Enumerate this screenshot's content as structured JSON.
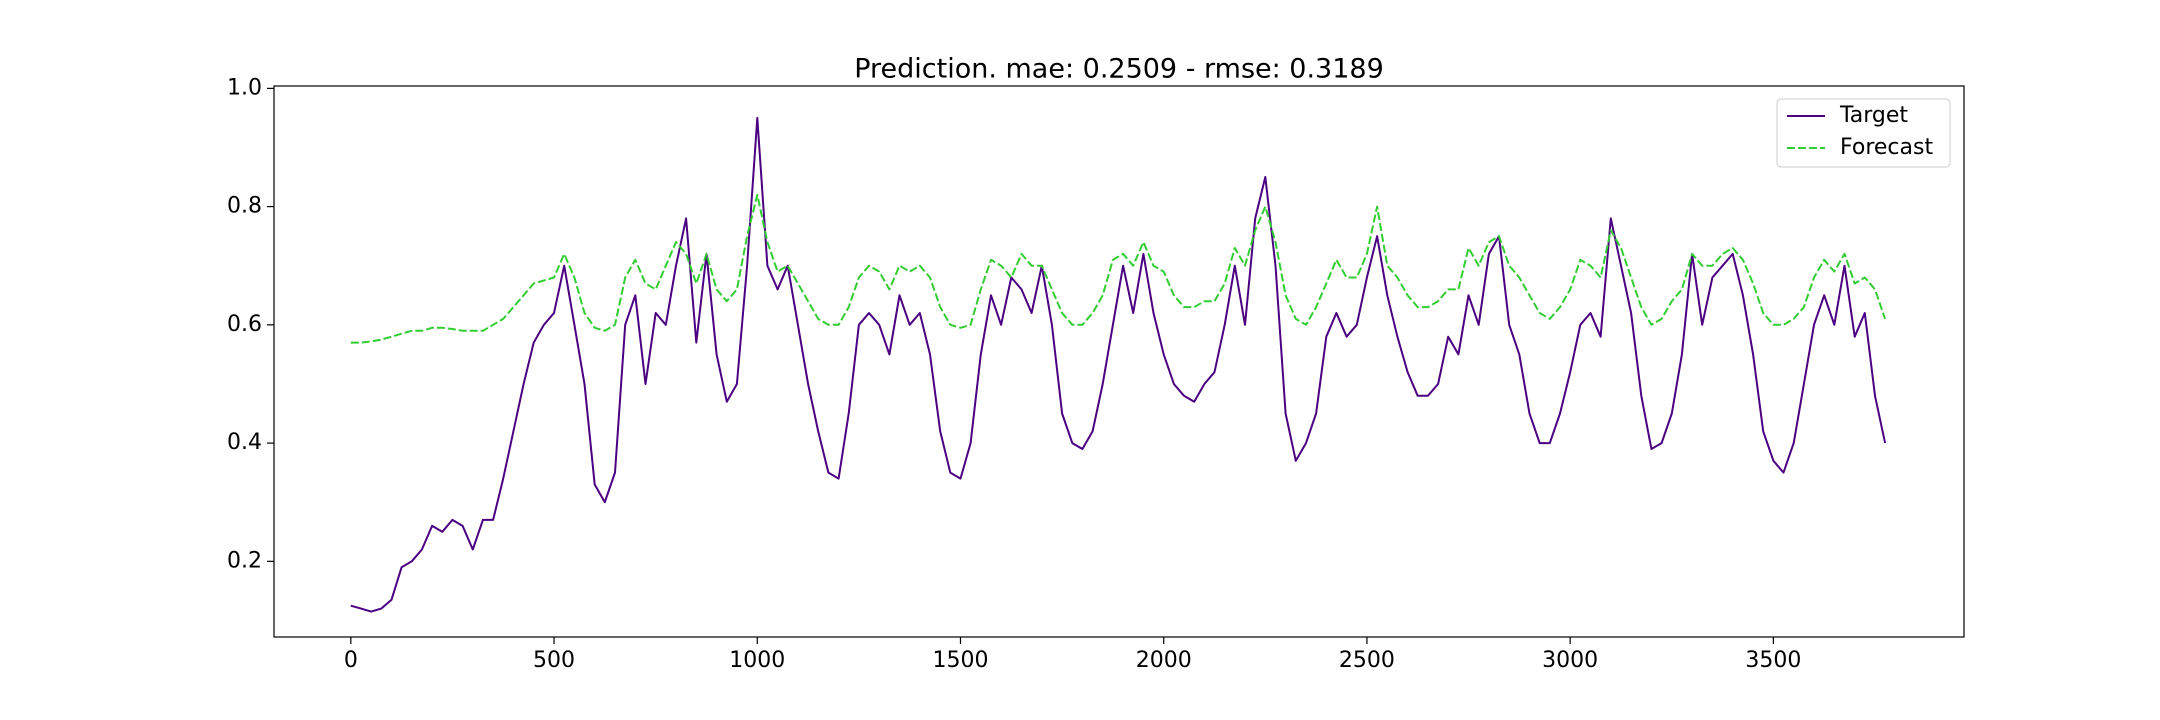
{
  "chart_data": {
    "type": "line",
    "title": "Prediction. mae: 0.2509 - rmse: 0.3189",
    "x": [
      0,
      25,
      50,
      75,
      100,
      125,
      150,
      175,
      200,
      225,
      250,
      275,
      300,
      325,
      350,
      375,
      400,
      425,
      450,
      475,
      500,
      525,
      550,
      575,
      600,
      625,
      650,
      675,
      700,
      725,
      750,
      775,
      800,
      825,
      850,
      875,
      900,
      925,
      950,
      975,
      1000,
      1025,
      1050,
      1075,
      1100,
      1125,
      1150,
      1175,
      1200,
      1225,
      1250,
      1275,
      1300,
      1325,
      1350,
      1375,
      1400,
      1425,
      1450,
      1475,
      1500,
      1525,
      1550,
      1575,
      1600,
      1625,
      1650,
      1675,
      1700,
      1725,
      1750,
      1775,
      1800,
      1825,
      1850,
      1875,
      1900,
      1925,
      1950,
      1975,
      2000,
      2025,
      2050,
      2075,
      2100,
      2125,
      2150,
      2175,
      2200,
      2225,
      2250,
      2275,
      2300,
      2325,
      2350,
      2375,
      2400,
      2425,
      2450,
      2475,
      2500,
      2525,
      2550,
      2575,
      2600,
      2625,
      2650,
      2675,
      2700,
      2725,
      2750,
      2775,
      2800,
      2825,
      2850,
      2875,
      2900,
      2925,
      2950,
      2975,
      3000,
      3025,
      3050,
      3075,
      3100,
      3125,
      3150,
      3175,
      3200,
      3225,
      3250,
      3275,
      3300,
      3325,
      3350,
      3375,
      3400,
      3425,
      3450,
      3475,
      3500,
      3525,
      3550,
      3575,
      3600,
      3625,
      3650,
      3675,
      3700,
      3725,
      3750,
      3775
    ],
    "series": [
      {
        "name": "Target",
        "color": "#4b0082",
        "linestyle": "solid",
        "values": [
          0.125,
          0.12,
          0.115,
          0.12,
          0.135,
          0.19,
          0.2,
          0.22,
          0.26,
          0.25,
          0.27,
          0.26,
          0.22,
          0.27,
          0.27,
          0.34,
          0.42,
          0.5,
          0.57,
          0.6,
          0.62,
          0.7,
          0.6,
          0.5,
          0.33,
          0.3,
          0.35,
          0.6,
          0.65,
          0.5,
          0.62,
          0.6,
          0.7,
          0.78,
          0.57,
          0.72,
          0.55,
          0.47,
          0.5,
          0.7,
          0.95,
          0.7,
          0.66,
          0.7,
          0.6,
          0.5,
          0.42,
          0.35,
          0.34,
          0.45,
          0.6,
          0.62,
          0.6,
          0.55,
          0.65,
          0.6,
          0.62,
          0.55,
          0.42,
          0.35,
          0.34,
          0.4,
          0.55,
          0.65,
          0.6,
          0.68,
          0.66,
          0.62,
          0.7,
          0.6,
          0.45,
          0.4,
          0.39,
          0.42,
          0.5,
          0.6,
          0.7,
          0.62,
          0.72,
          0.62,
          0.55,
          0.5,
          0.48,
          0.47,
          0.5,
          0.52,
          0.6,
          0.7,
          0.6,
          0.78,
          0.85,
          0.7,
          0.45,
          0.37,
          0.4,
          0.45,
          0.58,
          0.62,
          0.58,
          0.6,
          0.68,
          0.75,
          0.65,
          0.58,
          0.52,
          0.48,
          0.48,
          0.5,
          0.58,
          0.55,
          0.65,
          0.6,
          0.72,
          0.75,
          0.6,
          0.55,
          0.45,
          0.4,
          0.4,
          0.45,
          0.52,
          0.6,
          0.62,
          0.58,
          0.78,
          0.7,
          0.62,
          0.48,
          0.39,
          0.4,
          0.45,
          0.55,
          0.72,
          0.6,
          0.68,
          0.7,
          0.72,
          0.65,
          0.55,
          0.42,
          0.37,
          0.35,
          0.4,
          0.5,
          0.6,
          0.65,
          0.6,
          0.7,
          0.58,
          0.62,
          0.48,
          0.4
        ]
      },
      {
        "name": "Forecast",
        "color": "#32cd32",
        "linestyle": "dashed",
        "values": [
          0.57,
          0.57,
          0.572,
          0.575,
          0.58,
          0.585,
          0.59,
          0.59,
          0.595,
          0.595,
          0.593,
          0.59,
          0.59,
          0.59,
          0.6,
          0.61,
          0.63,
          0.65,
          0.67,
          0.675,
          0.68,
          0.72,
          0.68,
          0.62,
          0.595,
          0.59,
          0.6,
          0.68,
          0.71,
          0.67,
          0.66,
          0.7,
          0.74,
          0.72,
          0.67,
          0.72,
          0.66,
          0.64,
          0.66,
          0.75,
          0.82,
          0.74,
          0.69,
          0.7,
          0.67,
          0.64,
          0.61,
          0.6,
          0.6,
          0.63,
          0.68,
          0.7,
          0.69,
          0.66,
          0.7,
          0.69,
          0.7,
          0.68,
          0.63,
          0.6,
          0.595,
          0.6,
          0.66,
          0.71,
          0.7,
          0.68,
          0.72,
          0.7,
          0.7,
          0.66,
          0.62,
          0.6,
          0.6,
          0.62,
          0.65,
          0.71,
          0.72,
          0.7,
          0.74,
          0.7,
          0.69,
          0.65,
          0.63,
          0.63,
          0.64,
          0.64,
          0.67,
          0.73,
          0.7,
          0.76,
          0.8,
          0.74,
          0.65,
          0.61,
          0.6,
          0.63,
          0.67,
          0.71,
          0.68,
          0.68,
          0.72,
          0.8,
          0.7,
          0.68,
          0.65,
          0.63,
          0.63,
          0.64,
          0.66,
          0.66,
          0.73,
          0.7,
          0.74,
          0.75,
          0.7,
          0.68,
          0.65,
          0.62,
          0.61,
          0.63,
          0.66,
          0.71,
          0.7,
          0.68,
          0.76,
          0.73,
          0.68,
          0.63,
          0.6,
          0.61,
          0.64,
          0.66,
          0.72,
          0.7,
          0.7,
          0.72,
          0.73,
          0.71,
          0.67,
          0.62,
          0.6,
          0.6,
          0.61,
          0.63,
          0.68,
          0.71,
          0.69,
          0.72,
          0.67,
          0.68,
          0.66,
          0.61
        ]
      }
    ],
    "xlim": [
      -189,
      3969
    ],
    "ylim": [
      0.072,
      1.004
    ],
    "xticks": [
      0,
      500,
      1000,
      1500,
      2000,
      2500,
      3000,
      3500
    ],
    "yticks": [
      0.2,
      0.4,
      0.6,
      0.8,
      {
        "value": 1,
        "label": "1.0"
      }
    ],
    "grid": false,
    "legend": "upper right"
  }
}
